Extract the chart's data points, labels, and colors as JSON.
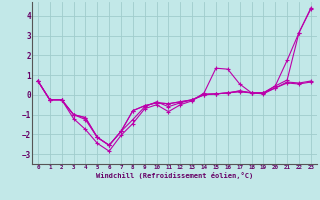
{
  "xlabel": "Windchill (Refroidissement éolien,°C)",
  "background_color": "#c2e8e8",
  "grid_color": "#a0cccc",
  "line_color": "#bb00aa",
  "axis_color": "#660066",
  "xlim": [
    -0.5,
    23.5
  ],
  "ylim": [
    -3.5,
    4.7
  ],
  "xticks": [
    0,
    1,
    2,
    3,
    4,
    5,
    6,
    7,
    8,
    9,
    10,
    11,
    12,
    13,
    14,
    15,
    16,
    17,
    18,
    19,
    20,
    21,
    22,
    23
  ],
  "yticks": [
    -3,
    -2,
    -1,
    0,
    1,
    2,
    3,
    4
  ],
  "line1_x": [
    0,
    1,
    2,
    3,
    4,
    5,
    6,
    7,
    8,
    9,
    10,
    11,
    12,
    13,
    14,
    15,
    16,
    17,
    18,
    19,
    20,
    21,
    22,
    23
  ],
  "line1_y": [
    0.7,
    -0.25,
    -0.25,
    -1.2,
    -1.75,
    -2.45,
    -2.85,
    -2.05,
    -1.45,
    -0.7,
    -0.5,
    -0.85,
    -0.5,
    -0.3,
    0.1,
    1.35,
    1.3,
    0.55,
    0.1,
    0.1,
    0.45,
    1.75,
    3.15,
    4.35
  ],
  "line2_x": [
    0,
    1,
    2,
    3,
    4,
    5,
    6,
    7,
    8,
    9,
    10,
    11,
    12,
    13,
    14,
    15,
    16,
    17,
    18,
    19,
    20,
    21,
    22,
    23
  ],
  "line2_y": [
    0.7,
    -0.25,
    -0.25,
    -1.0,
    -1.25,
    -2.15,
    -2.55,
    -1.85,
    -1.25,
    -0.6,
    -0.35,
    -0.6,
    -0.4,
    -0.25,
    0.05,
    0.05,
    0.1,
    0.15,
    0.1,
    0.05,
    0.35,
    0.6,
    0.55,
    0.65
  ],
  "line3_x": [
    0,
    1,
    2,
    3,
    4,
    5,
    6,
    7,
    8,
    9,
    10,
    11,
    12,
    13,
    14,
    15,
    16,
    17,
    18,
    19,
    20,
    21,
    22,
    23
  ],
  "line3_y": [
    0.7,
    -0.25,
    -0.25,
    -1.0,
    -1.15,
    -2.15,
    -2.55,
    -1.85,
    -0.8,
    -0.55,
    -0.4,
    -0.45,
    -0.35,
    -0.25,
    0.0,
    0.05,
    0.1,
    0.2,
    0.1,
    0.1,
    0.35,
    0.65,
    0.6,
    0.7
  ],
  "line4_x": [
    0,
    1,
    2,
    3,
    4,
    5,
    6,
    7,
    8,
    9,
    10,
    11,
    12,
    13,
    14,
    15,
    16,
    17,
    18,
    19,
    20,
    21,
    22,
    23
  ],
  "line4_y": [
    0.7,
    -0.25,
    -0.25,
    -1.0,
    -1.15,
    -2.15,
    -2.55,
    -1.85,
    -0.8,
    -0.55,
    -0.4,
    -0.45,
    -0.35,
    -0.25,
    0.0,
    0.05,
    0.1,
    0.2,
    0.1,
    0.1,
    0.45,
    0.75,
    3.15,
    4.4
  ]
}
